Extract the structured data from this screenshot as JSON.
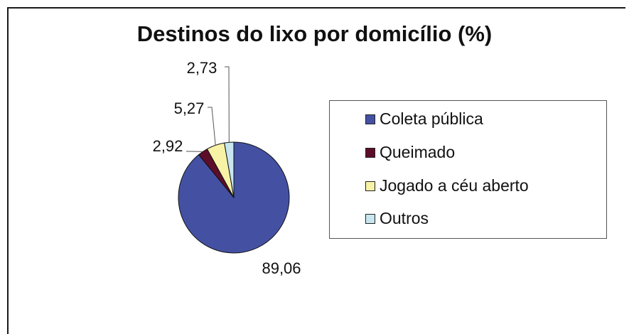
{
  "chart_data": {
    "type": "pie",
    "title": "Destinos do lixo por domicílio (%)",
    "categories": [
      "Coleta pública",
      "Queimado",
      "Jogado a céu aberto",
      "Outros"
    ],
    "values": [
      89.06,
      2.92,
      5.27,
      2.73
    ],
    "value_labels": [
      "89,06",
      "2,92",
      "5,27",
      "2,73"
    ],
    "colors": [
      "#4451a3",
      "#5c0d2a",
      "#f7f2a6",
      "#c7e6ef"
    ],
    "legend_position": "right"
  }
}
